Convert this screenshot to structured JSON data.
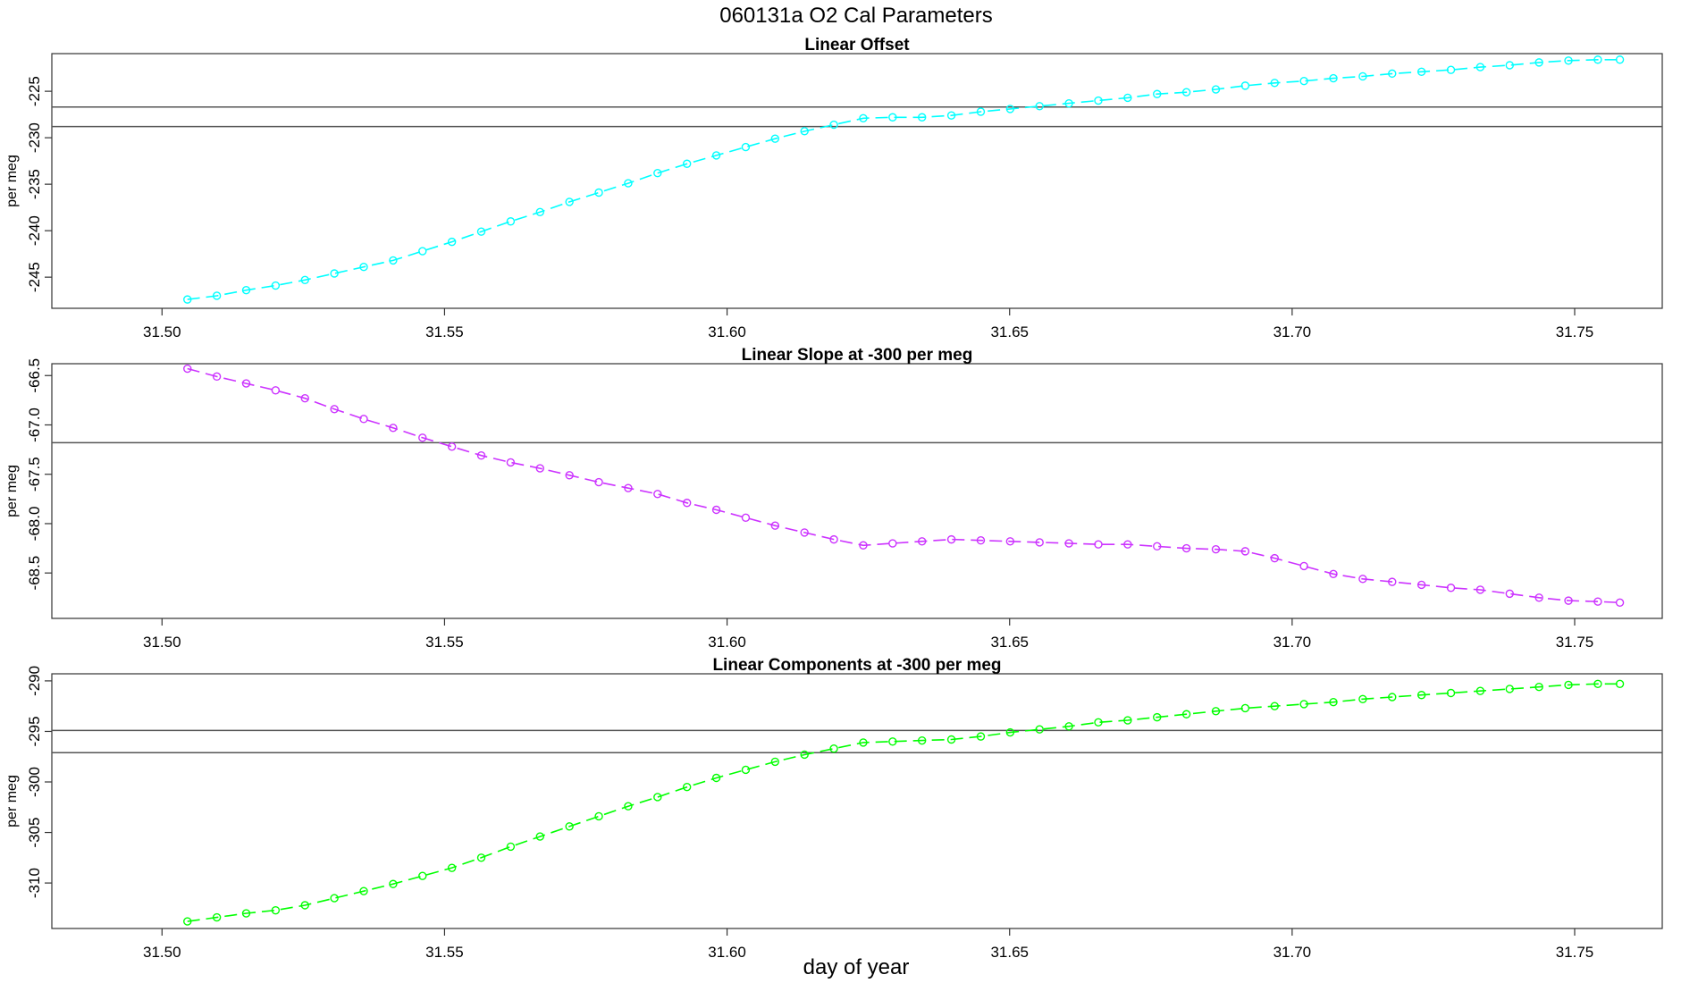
{
  "chart_data": {
    "title": "060131a   O2 Cal Parameters",
    "xlabel": "day of year",
    "panels": [
      {
        "type": "line",
        "title": "Linear Offset",
        "ylabel": "per meg",
        "color": "#00ffff",
        "xlim": [
          31.4805,
          31.7655
        ],
        "ylim": [
          -248.35,
          -220.95
        ],
        "x_ticks": [
          31.5,
          31.55,
          31.6,
          31.65,
          31.7,
          31.75
        ],
        "x_tick_labels": [
          "31.50",
          "31.55",
          "31.60",
          "31.65",
          "31.70",
          "31.75"
        ],
        "y_ticks": [
          -245,
          -240,
          -235,
          -230,
          -225
        ],
        "y_tick_labels": [
          "-245",
          "-240",
          "-235",
          "-230",
          "-225"
        ],
        "hlines": [
          -226.7,
          -228.8
        ],
        "x": [
          31.5045,
          31.5097,
          31.5149,
          31.5201,
          31.5253,
          31.5305,
          31.5357,
          31.5409,
          31.5461,
          31.5513,
          31.5565,
          31.5617,
          31.5669,
          31.5721,
          31.5773,
          31.5825,
          31.5877,
          31.5929,
          31.5981,
          31.6033,
          31.6085,
          31.6137,
          31.6189,
          31.6241,
          31.6293,
          31.6345,
          31.6397,
          31.6449,
          31.6501,
          31.6553,
          31.6605,
          31.6657,
          31.6709,
          31.6761,
          31.6813,
          31.6865,
          31.6917,
          31.6969,
          31.7021,
          31.7073,
          31.7125,
          31.7177,
          31.7229,
          31.7281,
          31.7333,
          31.7385,
          31.7437,
          31.7489,
          31.7541,
          31.758
        ],
        "y": [
          -247.4,
          -247.0,
          -246.4,
          -245.9,
          -245.3,
          -244.6,
          -243.9,
          -243.2,
          -242.2,
          -241.2,
          -240.1,
          -239.0,
          -238.0,
          -236.9,
          -235.9,
          -234.9,
          -233.8,
          -232.8,
          -231.9,
          -231.0,
          -230.1,
          -229.3,
          -228.6,
          -227.9,
          -227.8,
          -227.8,
          -227.6,
          -227.2,
          -226.9,
          -226.6,
          -226.3,
          -226.0,
          -225.7,
          -225.3,
          -225.1,
          -224.8,
          -224.4,
          -224.1,
          -223.9,
          -223.6,
          -223.4,
          -223.1,
          -222.9,
          -222.7,
          -222.4,
          -222.2,
          -221.9,
          -221.7,
          -221.6,
          -221.6
        ]
      },
      {
        "type": "line",
        "title": "Linear Slope at -300 per meg",
        "ylabel": "per meg",
        "color": "#cc33ff",
        "xlim": [
          31.4805,
          31.7655
        ],
        "ylim": [
          -68.96,
          -66.38
        ],
        "x_ticks": [
          31.5,
          31.55,
          31.6,
          31.65,
          31.7,
          31.75
        ],
        "x_tick_labels": [
          "31.50",
          "31.55",
          "31.60",
          "31.65",
          "31.70",
          "31.75"
        ],
        "y_ticks": [
          -68.5,
          -68.0,
          -67.5,
          -67.0,
          -66.5
        ],
        "y_tick_labels": [
          "-68.5",
          "-68.0",
          "-67.5",
          "-67.0",
          "-66.5"
        ],
        "hlines": [
          -67.18
        ],
        "x": [
          31.5045,
          31.5097,
          31.5149,
          31.5201,
          31.5253,
          31.5305,
          31.5357,
          31.5409,
          31.5461,
          31.5513,
          31.5565,
          31.5617,
          31.5669,
          31.5721,
          31.5773,
          31.5825,
          31.5877,
          31.5929,
          31.5981,
          31.6033,
          31.6085,
          31.6137,
          31.6189,
          31.6241,
          31.6293,
          31.6345,
          31.6397,
          31.6449,
          31.6501,
          31.6553,
          31.6605,
          31.6657,
          31.6709,
          31.6761,
          31.6813,
          31.6865,
          31.6917,
          31.6969,
          31.7021,
          31.7073,
          31.7125,
          31.7177,
          31.7229,
          31.7281,
          31.7333,
          31.7385,
          31.7437,
          31.7489,
          31.7541,
          31.758
        ],
        "y": [
          -66.43,
          -66.51,
          -66.58,
          -66.65,
          -66.73,
          -66.84,
          -66.94,
          -67.03,
          -67.13,
          -67.22,
          -67.31,
          -67.38,
          -67.44,
          -67.51,
          -67.58,
          -67.64,
          -67.7,
          -67.79,
          -67.86,
          -67.94,
          -68.02,
          -68.09,
          -68.16,
          -68.22,
          -68.2,
          -68.18,
          -68.16,
          -68.17,
          -68.18,
          -68.19,
          -68.2,
          -68.21,
          -68.21,
          -68.23,
          -68.25,
          -68.26,
          -68.28,
          -68.35,
          -68.43,
          -68.51,
          -68.56,
          -68.59,
          -68.62,
          -68.65,
          -68.67,
          -68.71,
          -68.75,
          -68.78,
          -68.79,
          -68.8
        ]
      },
      {
        "type": "line",
        "title": "Linear Components at -300 per meg",
        "ylabel": "per meg",
        "color": "#00ff00",
        "xlim": [
          31.4805,
          31.7655
        ],
        "ylim": [
          -314.5,
          -289.3
        ],
        "x_ticks": [
          31.5,
          31.55,
          31.6,
          31.65,
          31.7,
          31.75
        ],
        "x_tick_labels": [
          "31.50",
          "31.55",
          "31.60",
          "31.65",
          "31.70",
          "31.75"
        ],
        "y_ticks": [
          -310,
          -305,
          -300,
          -295,
          -290
        ],
        "y_tick_labels": [
          "-310",
          "-305",
          "-300",
          "-295",
          "-290"
        ],
        "hlines": [
          -294.9,
          -297.1
        ],
        "x": [
          31.5045,
          31.5097,
          31.5149,
          31.5201,
          31.5253,
          31.5305,
          31.5357,
          31.5409,
          31.5461,
          31.5513,
          31.5565,
          31.5617,
          31.5669,
          31.5721,
          31.5773,
          31.5825,
          31.5877,
          31.5929,
          31.5981,
          31.6033,
          31.6085,
          31.6137,
          31.6189,
          31.6241,
          31.6293,
          31.6345,
          31.6397,
          31.6449,
          31.6501,
          31.6553,
          31.6605,
          31.6657,
          31.6709,
          31.6761,
          31.6813,
          31.6865,
          31.6917,
          31.6969,
          31.7021,
          31.7073,
          31.7125,
          31.7177,
          31.7229,
          31.7281,
          31.7333,
          31.7385,
          31.7437,
          31.7489,
          31.7541,
          31.758
        ],
        "y": [
          -313.8,
          -313.4,
          -313.0,
          -312.7,
          -312.2,
          -311.5,
          -310.8,
          -310.1,
          -309.3,
          -308.5,
          -307.5,
          -306.4,
          -305.4,
          -304.4,
          -303.4,
          -302.4,
          -301.5,
          -300.5,
          -299.6,
          -298.8,
          -298.0,
          -297.3,
          -296.7,
          -296.1,
          -296.0,
          -295.9,
          -295.8,
          -295.5,
          -295.1,
          -294.8,
          -294.5,
          -294.1,
          -293.9,
          -293.6,
          -293.3,
          -293.0,
          -292.7,
          -292.5,
          -292.3,
          -292.1,
          -291.8,
          -291.6,
          -291.4,
          -291.2,
          -291.0,
          -290.8,
          -290.6,
          -290.4,
          -290.3,
          -290.3
        ]
      }
    ]
  }
}
